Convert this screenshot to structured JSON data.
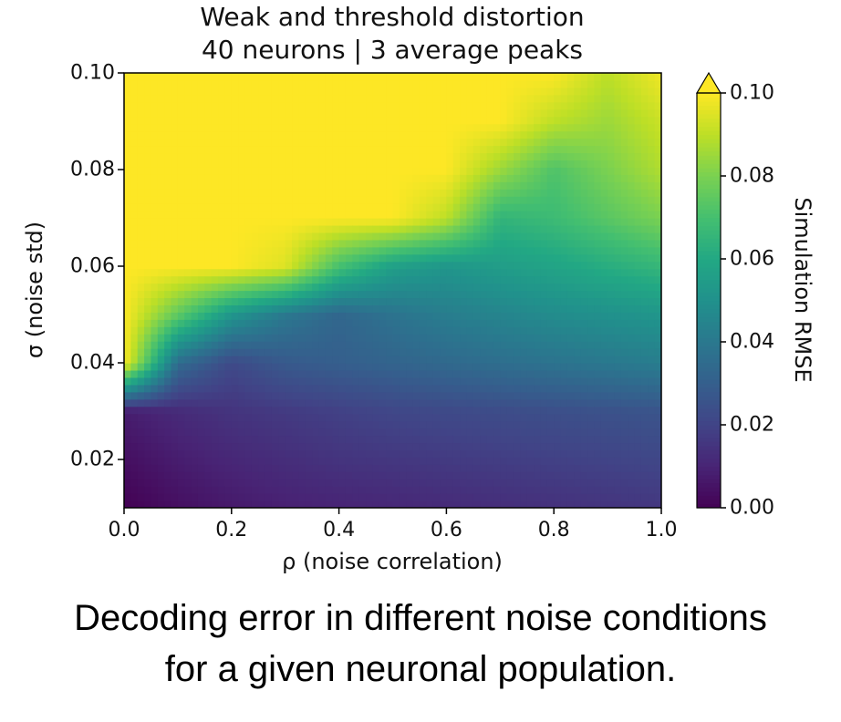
{
  "chart_data": {
    "type": "heatmap",
    "title_lines": [
      "Weak and threshold distortion",
      "40 neurons | 3 average peaks"
    ],
    "xlabel": "ρ (noise correlation)",
    "ylabel": "σ (noise std)",
    "xlim": [
      0.0,
      1.0
    ],
    "ylim": [
      0.01,
      0.1
    ],
    "x_ticks": [
      "0.0",
      "0.2",
      "0.4",
      "0.6",
      "0.8",
      "1.0"
    ],
    "y_ticks": [
      "0.02",
      "0.04",
      "0.06",
      "0.08",
      "0.10"
    ],
    "colorbar": {
      "label": "Simulation RMSE",
      "range": [
        0.0,
        0.1
      ],
      "ticks": [
        "0.00",
        "0.02",
        "0.04",
        "0.06",
        "0.08",
        "0.10"
      ],
      "extend": "max",
      "colormap": "viridis"
    },
    "grid": false,
    "x": [
      0.0,
      0.1,
      0.2,
      0.3,
      0.4,
      0.5,
      0.6,
      0.7,
      0.8,
      0.9,
      1.0
    ],
    "y": [
      0.01,
      0.02,
      0.03,
      0.04,
      0.05,
      0.06,
      0.07,
      0.08,
      0.09,
      0.1
    ],
    "z": [
      [
        0.0,
        0.004,
        0.007,
        0.009,
        0.01,
        0.011,
        0.012,
        0.013,
        0.014,
        0.015,
        0.016
      ],
      [
        0.004,
        0.008,
        0.011,
        0.013,
        0.015,
        0.016,
        0.017,
        0.018,
        0.019,
        0.02,
        0.021
      ],
      [
        0.008,
        0.012,
        0.015,
        0.017,
        0.019,
        0.021,
        0.022,
        0.023,
        0.024,
        0.025,
        0.026
      ],
      [
        0.1,
        0.035,
        0.022,
        0.028,
        0.03,
        0.032,
        0.034,
        0.036,
        0.038,
        0.04,
        0.042
      ],
      [
        0.1,
        0.075,
        0.052,
        0.04,
        0.033,
        0.038,
        0.042,
        0.045,
        0.048,
        0.05,
        0.052
      ],
      [
        0.1,
        0.1,
        0.1,
        0.095,
        0.07,
        0.056,
        0.052,
        0.055,
        0.058,
        0.062,
        0.066
      ],
      [
        0.1,
        0.1,
        0.1,
        0.1,
        0.1,
        0.1,
        0.09,
        0.065,
        0.068,
        0.074,
        0.08
      ],
      [
        0.1,
        0.1,
        0.1,
        0.1,
        0.1,
        0.1,
        0.1,
        0.085,
        0.072,
        0.08,
        0.088
      ],
      [
        0.1,
        0.1,
        0.1,
        0.1,
        0.1,
        0.1,
        0.1,
        0.1,
        0.09,
        0.085,
        0.092
      ],
      [
        0.1,
        0.1,
        0.1,
        0.1,
        0.1,
        0.1,
        0.1,
        0.1,
        0.1,
        0.09,
        0.098
      ]
    ]
  },
  "caption": {
    "line1": "Decoding error in different noise conditions",
    "line2": "for a given neuronal population."
  }
}
